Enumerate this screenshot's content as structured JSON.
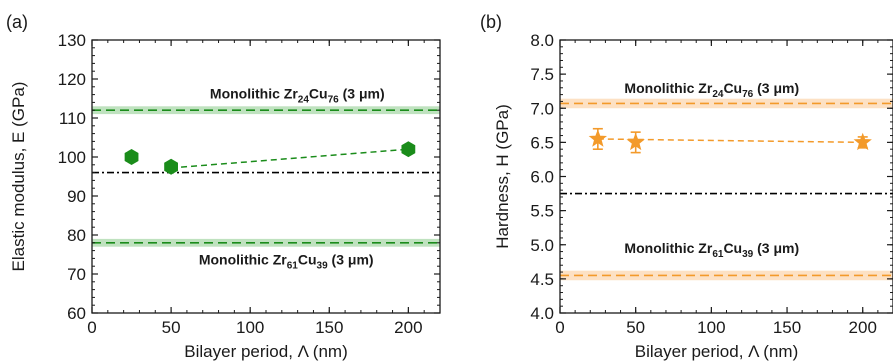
{
  "chart_data": [
    {
      "panel_label": "(a)",
      "type": "scatter",
      "xlabel": "Bilayer period, Λ (nm)",
      "ylabel": "Elastic modulus, E (GPa)",
      "xlim": [
        0,
        220
      ],
      "ylim": [
        60,
        130
      ],
      "xticks": [
        "0",
        "50",
        "100",
        "150",
        "200"
      ],
      "yticks": [
        "60",
        "70",
        "80",
        "90",
        "100",
        "110",
        "120",
        "130"
      ],
      "series": [
        {
          "x": [
            25,
            50,
            200
          ],
          "y": [
            100,
            97.5,
            102
          ],
          "err": [
            0.5,
            0.5,
            0.5
          ],
          "marker": "hexagon",
          "color": "#1a8c1a",
          "fit": {
            "x": [
              50,
              200
            ],
            "y": [
              97.2,
              102
            ]
          }
        }
      ],
      "hlines": [
        {
          "y": 112,
          "band": [
            111,
            113
          ],
          "style": "dashed",
          "color": "#1a8c1a",
          "band_color": "#bfe2bf"
        },
        {
          "y": 78,
          "band": [
            77,
            79
          ],
          "style": "dashed",
          "color": "#1a8c1a",
          "band_color": "#bfe2bf"
        },
        {
          "y": 96,
          "style": "dashdot",
          "color": "#000000"
        }
      ],
      "annotations": [
        {
          "text": "Monolithic Zr",
          "sub1": "24",
          "mid": "Cu",
          "sub2": "76",
          "tail": " (3 μm)",
          "x": 185,
          "y": 115
        },
        {
          "text": "Monolithic Zr",
          "sub1": "61",
          "mid": "Cu",
          "sub2": "39",
          "tail": " (3 μm)",
          "x": 178,
          "y": 72.5
        }
      ]
    },
    {
      "panel_label": "(b)",
      "type": "scatter",
      "xlabel": "Bilayer period, Λ (nm)",
      "ylabel": "Hardness, H (GPa)",
      "xlim": [
        0,
        220
      ],
      "ylim": [
        4.0,
        8.0
      ],
      "xticks": [
        "0",
        "50",
        "100",
        "150",
        "200"
      ],
      "yticks": [
        "4.0",
        "4.5",
        "5.0",
        "5.5",
        "6.0",
        "6.5",
        "7.0",
        "7.5",
        "8.0"
      ],
      "series": [
        {
          "x": [
            25,
            50,
            200
          ],
          "y": [
            6.55,
            6.5,
            6.5
          ],
          "err": [
            0.15,
            0.15,
            0.08
          ],
          "marker": "star",
          "color": "#f39a2a",
          "fit": {
            "x": [
              25,
              200
            ],
            "y": [
              6.55,
              6.5
            ]
          }
        }
      ],
      "hlines": [
        {
          "y": 7.07,
          "band": [
            7.0,
            7.14
          ],
          "style": "dashed",
          "color": "#f39a2a",
          "band_color": "#fde1c4"
        },
        {
          "y": 4.55,
          "band": [
            4.48,
            4.62
          ],
          "style": "dashed",
          "color": "#f39a2a",
          "band_color": "#fde1c4"
        },
        {
          "y": 5.75,
          "style": "dashdot",
          "color": "#000000"
        }
      ],
      "annotations": [
        {
          "text": "Monolithic Zr",
          "sub1": "24",
          "mid": "Cu",
          "sub2": "76",
          "tail": " (3 μm)",
          "x": 158,
          "y": 7.22
        },
        {
          "text": "Monolithic Zr",
          "sub1": "61",
          "mid": "Cu",
          "sub2": "39",
          "tail": " (3 μm)",
          "x": 158,
          "y": 4.88
        }
      ]
    }
  ]
}
